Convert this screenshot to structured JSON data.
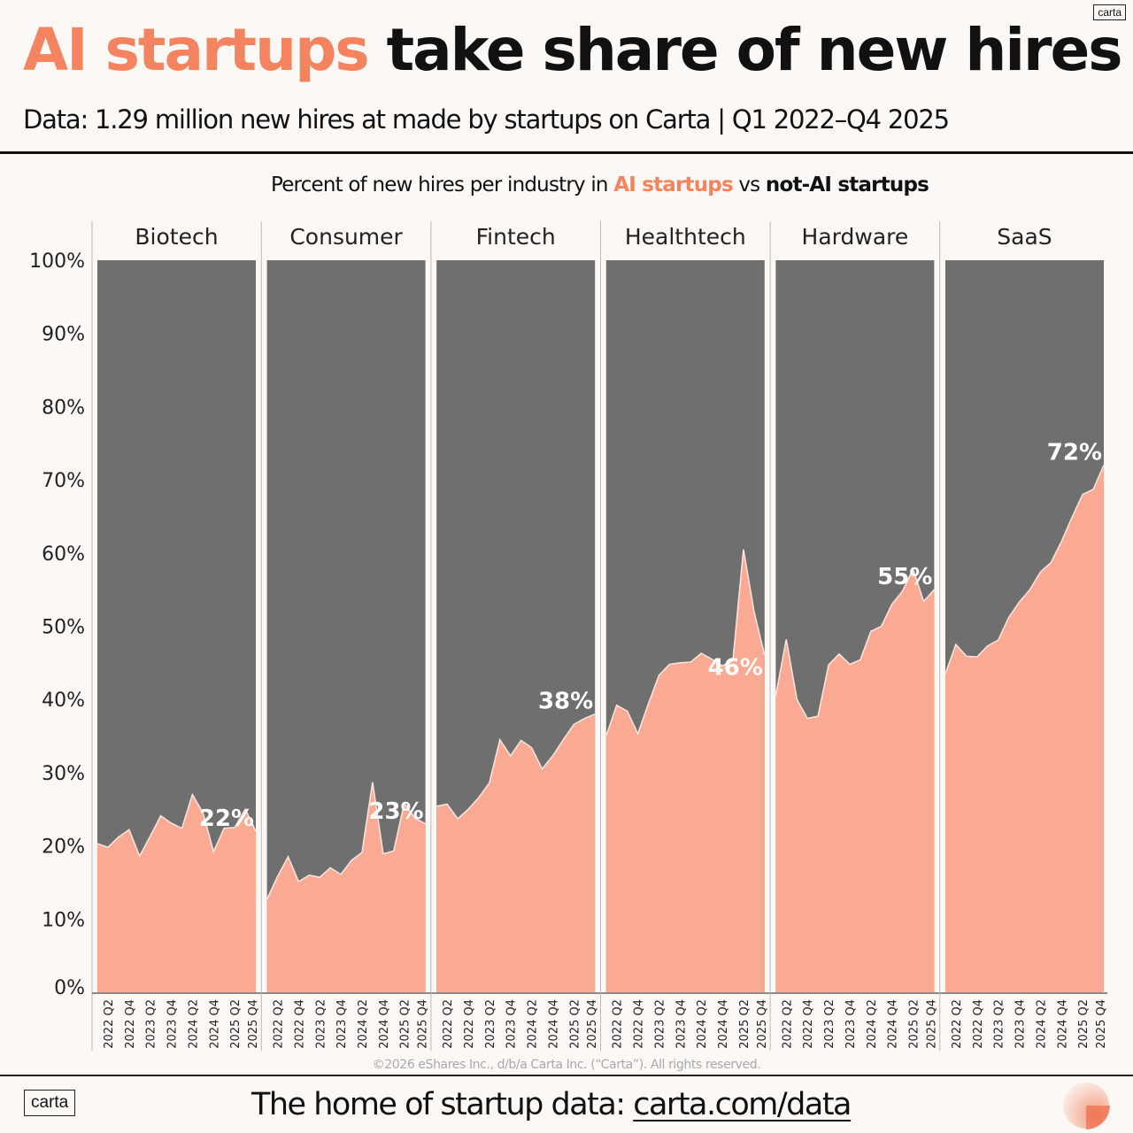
{
  "header": {
    "logo_top": "carta",
    "title_highlight": "AI startups",
    "title_rest": "take share of new hires",
    "subtitle": "Data:  1.29 million new hires at made by startups on Carta | Q1 2022–Q4 2025"
  },
  "chart_title": {
    "prefix": "Percent of new hires per industry in ",
    "ai_label": "AI startups",
    "middle": " vs ",
    "not_ai_label": "not-AI startups"
  },
  "colors": {
    "ai": "#faa992",
    "not_ai": "#6f6f6f",
    "accent": "#f4845f",
    "line": "#fbe3dc",
    "background": "#fbf8f6"
  },
  "chart_data": {
    "type": "area",
    "title": "Percent of new hires per industry in AI startups vs not-AI startups",
    "xlabel": "",
    "ylabel": "",
    "ylim": [
      0,
      100
    ],
    "yticks": [
      "0%",
      "10%",
      "20%",
      "30%",
      "40%",
      "50%",
      "60%",
      "70%",
      "80%",
      "90%",
      "100%"
    ],
    "x": [
      "2022 Q1",
      "2022 Q2",
      "2022 Q3",
      "2022 Q4",
      "2023 Q1",
      "2023 Q2",
      "2023 Q3",
      "2023 Q4",
      "2024 Q1",
      "2024 Q2",
      "2024 Q3",
      "2024 Q4",
      "2025 Q1",
      "2025 Q2",
      "2025 Q3",
      "2025 Q4"
    ],
    "xtick_labels": [
      "2022 Q2",
      "2022 Q4",
      "2023 Q2",
      "2023 Q4",
      "2024 Q2",
      "2024 Q4",
      "2025 Q2",
      "2025 Q4"
    ],
    "stacked": true,
    "legend": [
      "AI startups",
      "not-AI startups"
    ],
    "panels": [
      {
        "name": "Biotech",
        "end_label": "22%",
        "ai_pct": [
          20.3,
          19.8,
          21.2,
          22.2,
          18.6,
          21.3,
          24.1,
          23.1,
          22.4,
          27.0,
          24.5,
          19.2,
          22.4,
          22.5,
          25.0,
          22.0
        ]
      },
      {
        "name": "Consumer",
        "end_label": "23%",
        "ai_pct": [
          12.7,
          15.8,
          18.5,
          15.1,
          16.0,
          15.7,
          17.0,
          16.1,
          18.0,
          19.1,
          28.7,
          18.9,
          19.3,
          25.8,
          23.8,
          23.0
        ]
      },
      {
        "name": "Fintech",
        "end_label": "38%",
        "ai_pct": [
          25.4,
          25.7,
          23.7,
          25.0,
          26.6,
          28.6,
          34.5,
          32.3,
          34.4,
          33.4,
          30.5,
          32.3,
          34.5,
          36.6,
          37.4,
          38.0
        ]
      },
      {
        "name": "Healthtech",
        "end_label": "46%",
        "ai_pct": [
          35.0,
          39.2,
          38.4,
          35.3,
          39.4,
          43.3,
          44.8,
          45.0,
          45.1,
          46.3,
          45.5,
          44.6,
          45.3,
          60.5,
          52.0,
          46.0
        ]
      },
      {
        "name": "Hardware",
        "end_label": "55%",
        "ai_pct": [
          40.5,
          48.2,
          40.0,
          37.4,
          37.7,
          44.7,
          46.2,
          44.8,
          45.4,
          49.3,
          50.0,
          53.0,
          54.8,
          57.8,
          53.4,
          55.0
        ]
      },
      {
        "name": "SaaS",
        "end_label": "72%",
        "ai_pct": [
          43.5,
          47.5,
          45.9,
          45.8,
          47.3,
          48.1,
          51.2,
          53.3,
          55.0,
          57.4,
          58.7,
          61.6,
          64.9,
          68.0,
          68.7,
          72.0
        ]
      }
    ]
  },
  "footer": {
    "copyright": "©2026 eShares Inc., d/b/a Carta Inc. (“Carta”). All rights reserved.",
    "logo": "carta",
    "tagline_prefix": "The home of startup data: ",
    "tagline_link": "carta.com/data"
  }
}
